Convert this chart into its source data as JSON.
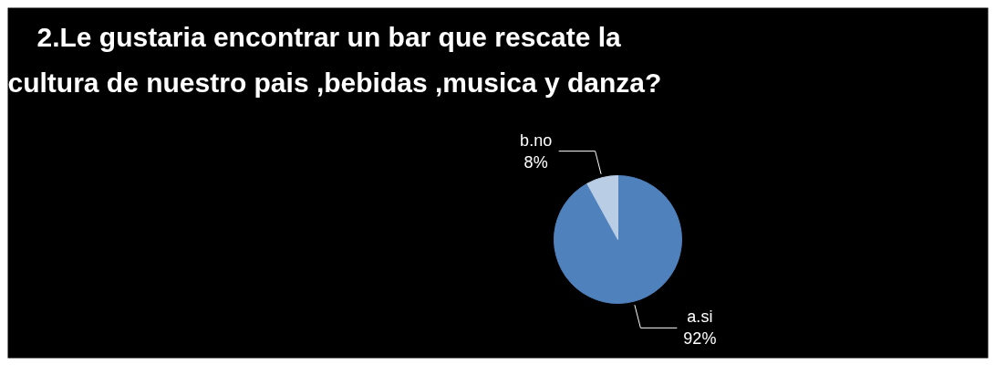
{
  "chart_data": {
    "type": "pie",
    "title": "2.Le gustaria  encontrar  un bar  que rescate  la\ncultura de nuestro pais ,bebidas ,musica y danza?",
    "categories": [
      "a.si",
      "b.no"
    ],
    "values": [
      92,
      8
    ],
    "colors": [
      "#4f81bd",
      "#b9cde5"
    ],
    "value_labels": [
      "92%",
      "8%"
    ],
    "legend": false
  }
}
